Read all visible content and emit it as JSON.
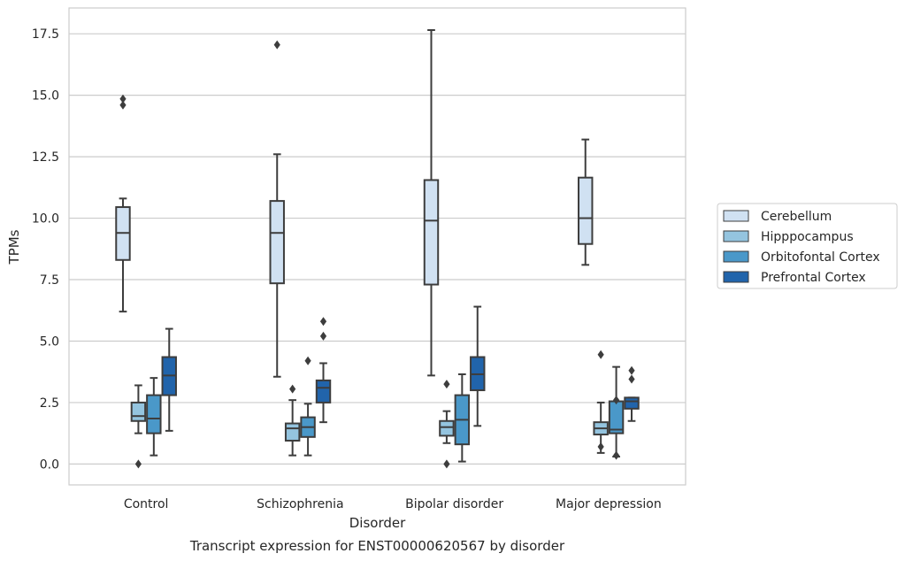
{
  "chart_data": {
    "type": "box",
    "title": "",
    "caption": "Transcript expression for ENST00000620567 by disorder",
    "xlabel": "Disorder",
    "ylabel": "TPMs",
    "categories": [
      "Control",
      "Schizophrenia",
      "Bipolar disorder",
      "Major depression"
    ],
    "ylim": [
      -0.85,
      18.55
    ],
    "yticks": [
      0.0,
      2.5,
      5.0,
      7.5,
      10.0,
      12.5,
      15.0,
      17.5
    ],
    "ytick_labels": [
      "0.0",
      "2.5",
      "5.0",
      "7.5",
      "10.0",
      "12.5",
      "15.0",
      "17.5"
    ],
    "grid": "horizontal",
    "legend_position": "right",
    "series": [
      {
        "name": "Cerebellum",
        "color": "#d0e1f2",
        "boxes": [
          {
            "whislo": 6.2,
            "q1": 8.3,
            "med": 9.4,
            "q3": 10.45,
            "whishi": 10.8,
            "fliers": [
              14.6,
              14.85
            ]
          },
          {
            "whislo": 3.55,
            "q1": 7.35,
            "med": 9.4,
            "q3": 10.7,
            "whishi": 12.6,
            "fliers": [
              17.05
            ]
          },
          {
            "whislo": 3.6,
            "q1": 7.3,
            "med": 9.9,
            "q3": 11.55,
            "whishi": 17.65,
            "fliers": []
          },
          {
            "whislo": 8.1,
            "q1": 8.95,
            "med": 10.0,
            "q3": 11.65,
            "whishi": 13.2,
            "fliers": []
          }
        ]
      },
      {
        "name": "Hipppocampus",
        "color": "#94c4df",
        "boxes": [
          {
            "whislo": 1.25,
            "q1": 1.75,
            "med": 1.95,
            "q3": 2.5,
            "whishi": 3.2,
            "fliers": [
              0.0
            ]
          },
          {
            "whislo": 0.35,
            "q1": 0.95,
            "med": 1.45,
            "q3": 1.65,
            "whishi": 2.6,
            "fliers": [
              3.05
            ]
          },
          {
            "whislo": 0.85,
            "q1": 1.15,
            "med": 1.5,
            "q3": 1.75,
            "whishi": 2.15,
            "fliers": [
              0.0,
              3.25
            ]
          },
          {
            "whislo": 0.45,
            "q1": 1.2,
            "med": 1.45,
            "q3": 1.7,
            "whishi": 2.5,
            "fliers": [
              0.7,
              4.45
            ]
          }
        ]
      },
      {
        "name": "Orbitofontal Cortex",
        "color": "#4a98c9",
        "boxes": [
          {
            "whislo": 0.35,
            "q1": 1.25,
            "med": 1.85,
            "q3": 2.8,
            "whishi": 3.5,
            "fliers": []
          },
          {
            "whislo": 0.35,
            "q1": 1.1,
            "med": 1.5,
            "q3": 1.9,
            "whishi": 2.45,
            "fliers": [
              4.2
            ]
          },
          {
            "whislo": 0.1,
            "q1": 0.8,
            "med": 1.8,
            "q3": 2.8,
            "whishi": 3.65,
            "fliers": []
          },
          {
            "whislo": 0.3,
            "q1": 1.25,
            "med": 1.4,
            "q3": 2.55,
            "whishi": 3.95,
            "fliers": [
              0.35,
              2.6
            ]
          }
        ]
      },
      {
        "name": "Prefrontal Cortex",
        "color": "#2164ab",
        "boxes": [
          {
            "whislo": 1.35,
            "q1": 2.8,
            "med": 3.6,
            "q3": 4.35,
            "whishi": 5.5,
            "fliers": []
          },
          {
            "whislo": 1.7,
            "q1": 2.5,
            "med": 3.1,
            "q3": 3.4,
            "whishi": 4.1,
            "fliers": [
              5.2,
              5.8
            ]
          },
          {
            "whislo": 1.55,
            "q1": 3.0,
            "med": 3.65,
            "q3": 4.35,
            "whishi": 6.4,
            "fliers": []
          },
          {
            "whislo": 1.75,
            "q1": 2.25,
            "med": 2.55,
            "q3": 2.7,
            "whishi": 2.7,
            "fliers": [
              3.45,
              3.8
            ]
          }
        ]
      }
    ]
  }
}
